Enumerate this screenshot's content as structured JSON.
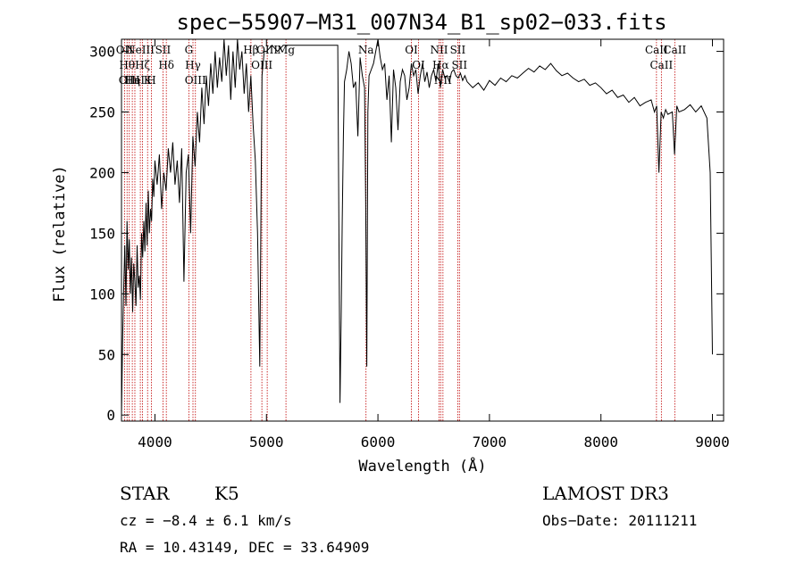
{
  "chart_data": {
    "type": "line",
    "title": "spec−55907−M31_007N34_B1_sp02−033.fits",
    "xlabel": "Wavelength (Å)",
    "ylabel": "Flux (relative)",
    "xlim": [
      3700,
      9100
    ],
    "ylim": [
      -5,
      310
    ],
    "x_ticks": [
      4000,
      5000,
      6000,
      7000,
      8000,
      9000
    ],
    "y_ticks": [
      0,
      50,
      100,
      150,
      200,
      250,
      300
    ],
    "grid": false,
    "series": [
      {
        "color": "#000000",
        "x": [
          3700,
          3710,
          3720,
          3730,
          3740,
          3750,
          3760,
          3770,
          3780,
          3790,
          3800,
          3810,
          3820,
          3830,
          3840,
          3850,
          3860,
          3870,
          3880,
          3890,
          3900,
          3910,
          3920,
          3930,
          3940,
          3950,
          3960,
          3970,
          3980,
          3990,
          4000,
          4020,
          4040,
          4060,
          4080,
          4100,
          4120,
          4140,
          4160,
          4180,
          4200,
          4220,
          4240,
          4260,
          4280,
          4300,
          4320,
          4340,
          4360,
          4380,
          4400,
          4420,
          4440,
          4460,
          4480,
          4500,
          4520,
          4540,
          4560,
          4580,
          4600,
          4620,
          4640,
          4660,
          4680,
          4700,
          4720,
          4740,
          4760,
          4780,
          4800,
          4820,
          4840,
          4860,
          4880,
          4900,
          4920,
          4940,
          4960,
          4980,
          5000,
          5050,
          5100,
          5150,
          5200,
          5250,
          5300,
          5350,
          5400,
          5450,
          5500,
          5550,
          5600,
          5640,
          5660,
          5670,
          5680,
          5690,
          5700,
          5720,
          5740,
          5760,
          5780,
          5800,
          5820,
          5840,
          5860,
          5880,
          5890,
          5900,
          5910,
          5920,
          5940,
          5960,
          5980,
          6000,
          6020,
          6040,
          6060,
          6080,
          6100,
          6120,
          6140,
          6160,
          6180,
          6200,
          6220,
          6240,
          6260,
          6280,
          6300,
          6320,
          6340,
          6360,
          6380,
          6400,
          6420,
          6440,
          6460,
          6480,
          6500,
          6520,
          6540,
          6560,
          6580,
          6600,
          6620,
          6640,
          6660,
          6680,
          6700,
          6720,
          6740,
          6760,
          6780,
          6800,
          6850,
          6900,
          6950,
          7000,
          7050,
          7100,
          7150,
          7200,
          7250,
          7300,
          7350,
          7400,
          7450,
          7500,
          7550,
          7600,
          7650,
          7700,
          7750,
          7800,
          7850,
          7900,
          7950,
          8000,
          8050,
          8100,
          8150,
          8200,
          8250,
          8300,
          8350,
          8400,
          8450,
          8480,
          8500,
          8520,
          8540,
          8560,
          8580,
          8600,
          8640,
          8660,
          8680,
          8700,
          8750,
          8800,
          8850,
          8900,
          8950,
          8980,
          9000
        ],
        "y": [
          0,
          60,
          105,
          140,
          90,
          160,
          120,
          145,
          100,
          130,
          85,
          125,
          110,
          90,
          140,
          105,
          115,
          95,
          150,
          130,
          160,
          135,
          175,
          140,
          185,
          150,
          170,
          160,
          195,
          180,
          210,
          190,
          215,
          170,
          200,
          185,
          220,
          200,
          225,
          190,
          210,
          175,
          220,
          110,
          200,
          215,
          150,
          230,
          205,
          250,
          225,
          270,
          240,
          280,
          255,
          290,
          265,
          300,
          270,
          295,
          275,
          310,
          280,
          305,
          260,
          300,
          270,
          310,
          285,
          300,
          265,
          290,
          250,
          280,
          240,
          210,
          150,
          40,
          280,
          300,
          300,
          305,
          300,
          305,
          305,
          305,
          305,
          305,
          305,
          305,
          305,
          305,
          305,
          305,
          10,
          80,
          160,
          230,
          275,
          285,
          300,
          290,
          270,
          275,
          230,
          295,
          280,
          270,
          180,
          40,
          250,
          280,
          285,
          290,
          300,
          310,
          295,
          285,
          290,
          260,
          280,
          225,
          285,
          270,
          235,
          275,
          285,
          280,
          260,
          270,
          290,
          280,
          285,
          265,
          280,
          290,
          275,
          283,
          270,
          280,
          285,
          275,
          290,
          270,
          285,
          278,
          280,
          275,
          283,
          285,
          280,
          278,
          282,
          276,
          280,
          275,
          270,
          274,
          268,
          276,
          272,
          278,
          275,
          280,
          278,
          282,
          286,
          283,
          288,
          285,
          290,
          284,
          280,
          282,
          278,
          275,
          277,
          272,
          274,
          270,
          265,
          268,
          262,
          264,
          258,
          262,
          255,
          258,
          260,
          250,
          255,
          200,
          250,
          245,
          252,
          248,
          250,
          215,
          255,
          250,
          252,
          256,
          250,
          255,
          245,
          200,
          50
        ]
      }
    ],
    "reference_lines": [
      {
        "x": 3727,
        "label": "OII"
      },
      {
        "x": 3750,
        "label": "Hθ"
      },
      {
        "x": 3770,
        "label": "OIII"
      },
      {
        "x": 3797,
        "label": "Hη"
      },
      {
        "x": 3820,
        "label": "HeI"
      },
      {
        "x": 3869,
        "label": "NeIII"
      },
      {
        "x": 3889,
        "label": "Hζ"
      },
      {
        "x": 3934,
        "label": "K"
      },
      {
        "x": 3968,
        "label": "H"
      },
      {
        "x": 4072,
        "label": "SII"
      },
      {
        "x": 4102,
        "label": "Hδ"
      },
      {
        "x": 4304,
        "label": "G"
      },
      {
        "x": 4341,
        "label": "Hγ"
      },
      {
        "x": 4363,
        "label": "OIII"
      },
      {
        "x": 4861,
        "label": "Hβ"
      },
      {
        "x": 4959,
        "label": "OIII"
      },
      {
        "x": 5007,
        "label": "OIII"
      },
      {
        "x": 5175,
        "label": "Mg"
      },
      {
        "x": 5893,
        "label": "Na"
      },
      {
        "x": 6300,
        "label": "OI"
      },
      {
        "x": 6364,
        "label": "OI"
      },
      {
        "x": 6548,
        "label": "NII"
      },
      {
        "x": 6563,
        "label": "Hα"
      },
      {
        "x": 6583,
        "label": "NII"
      },
      {
        "x": 6716,
        "label": "SII"
      },
      {
        "x": 6731,
        "label": "SII"
      },
      {
        "x": 8498,
        "label": "CaII"
      },
      {
        "x": 8542,
        "label": "CaII"
      },
      {
        "x": 8662,
        "label": "CaII"
      }
    ]
  },
  "info": {
    "class_label": "STAR",
    "subclass": "K5",
    "survey": "LAMOST DR3",
    "cz": "cz = −8.4 ± 6.1 km/s",
    "obs_date": "Obs−Date: 20111211",
    "coords": "RA =  10.43149, DEC =  33.64909"
  },
  "colors": {
    "spectrum": "#000000",
    "reference_line": "#c00000",
    "axes": "#000000"
  }
}
